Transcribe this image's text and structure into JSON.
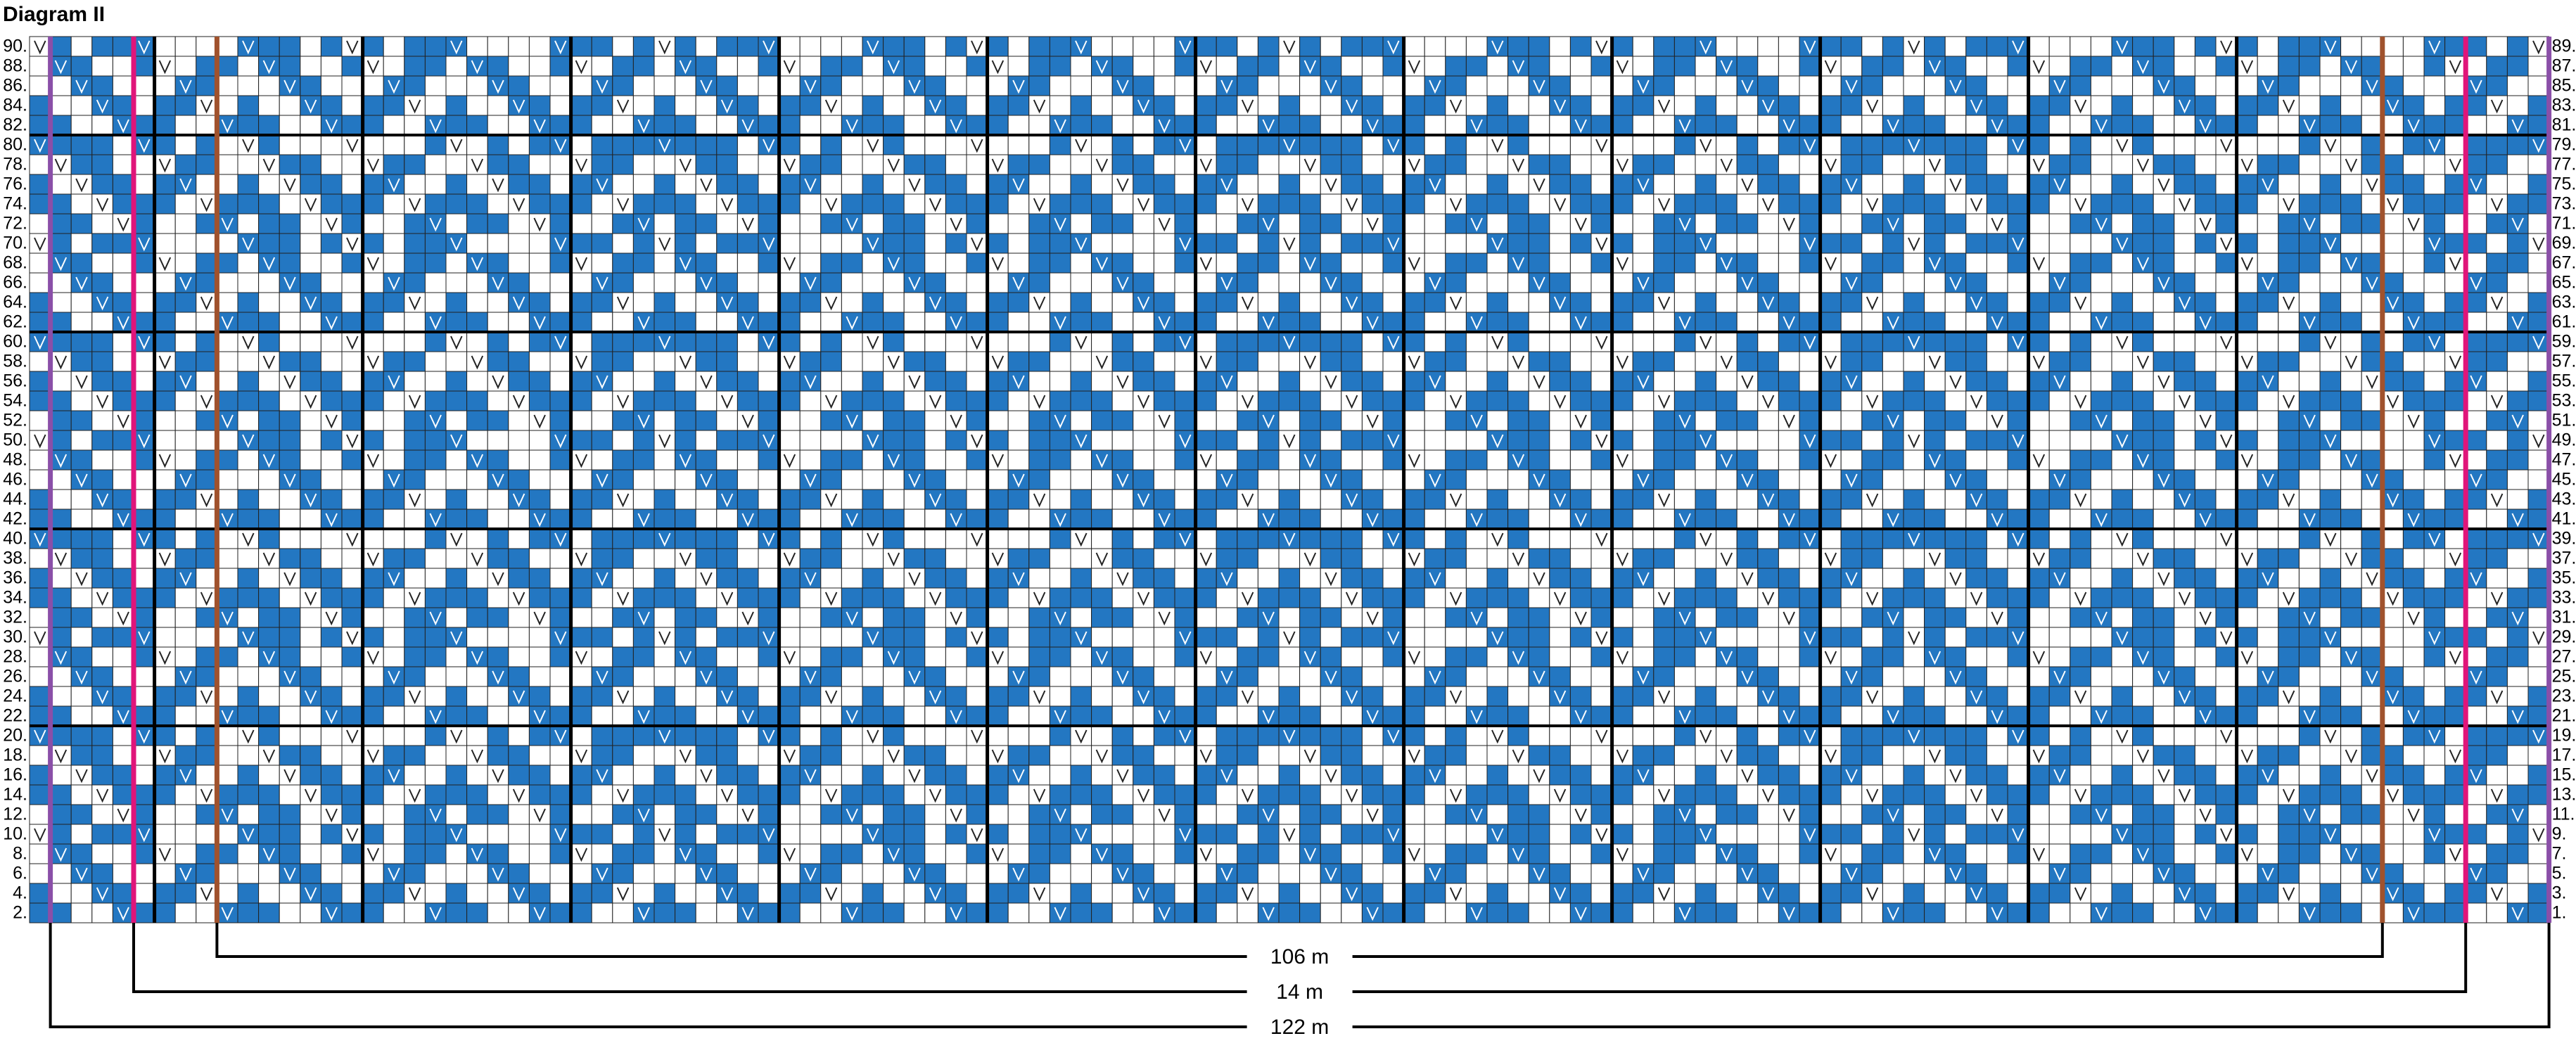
{
  "header": {
    "title": "Diagram II"
  },
  "rows": {
    "left": [
      "90.",
      "88.",
      "86.",
      "84.",
      "82.",
      "80.",
      "78.",
      "76.",
      "74.",
      "72.",
      "70.",
      "68.",
      "66.",
      "64.",
      "62.",
      "60.",
      "58.",
      "56.",
      "54.",
      "52.",
      "50.",
      "48.",
      "46.",
      "44.",
      "42.",
      "40.",
      "38.",
      "36.",
      "34.",
      "32.",
      "30.",
      "28.",
      "26.",
      "24.",
      "22.",
      "20.",
      "18.",
      "16.",
      "14.",
      "12.",
      "10.",
      "8.",
      "6.",
      "4.",
      "2."
    ],
    "right": [
      "89.",
      "87.",
      "85.",
      "83.",
      "81.",
      "79.",
      "77.",
      "75.",
      "73.",
      "71.",
      "69.",
      "67.",
      "65.",
      "63.",
      "61.",
      "59.",
      "57.",
      "55.",
      "53.",
      "51.",
      "49.",
      "47.",
      "45.",
      "43.",
      "41.",
      "39.",
      "37.",
      "35.",
      "33.",
      "31.",
      "29.",
      "27.",
      "25.",
      "23.",
      "21.",
      "19.",
      "17.",
      "15.",
      "13.",
      "11.",
      "9.",
      "7.",
      "5.",
      "3.",
      "1."
    ]
  },
  "brackets": [
    "106 m",
    "14 m",
    "122 m"
  ]
}
